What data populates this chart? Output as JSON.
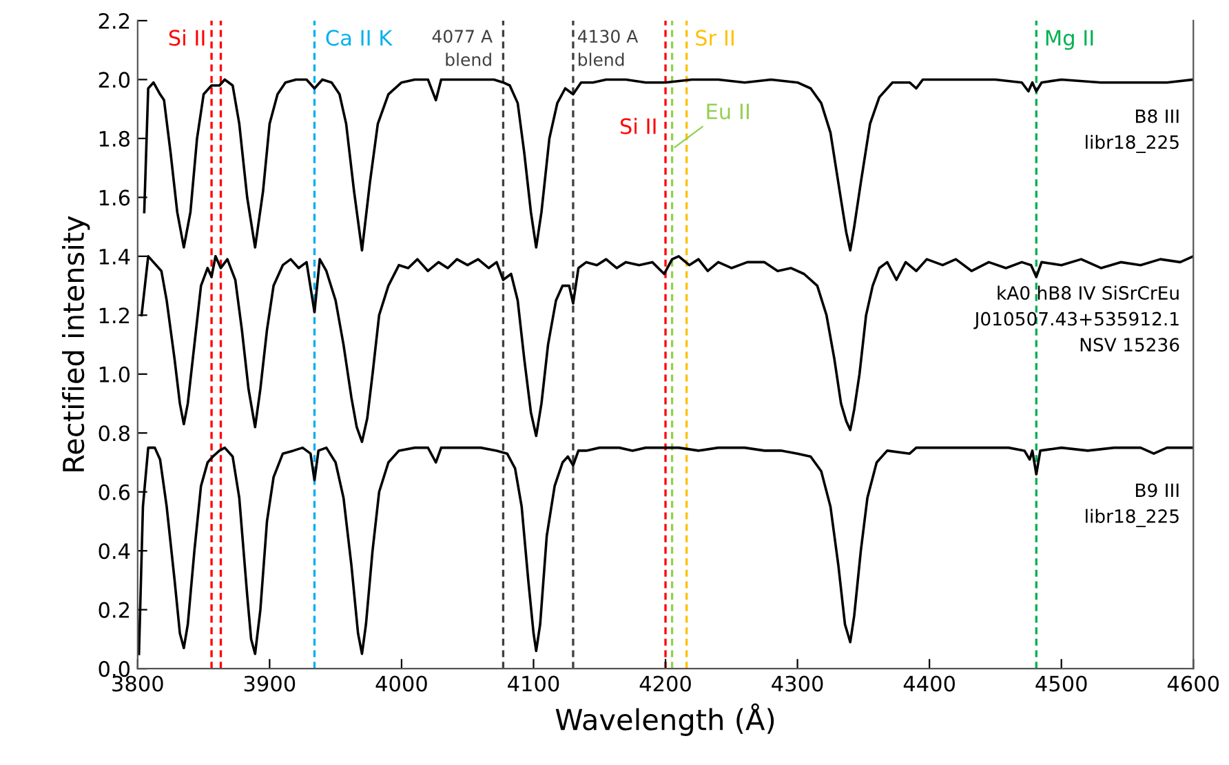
{
  "chart_data": {
    "type": "line",
    "xlabel": "Wavelength (Å)",
    "ylabel": "Rectified intensity",
    "xlim": [
      3800,
      4600
    ],
    "xticks": [
      3800,
      3900,
      4000,
      4100,
      4200,
      4300,
      4400,
      4500,
      4600
    ],
    "ylim": [
      0,
      2.2
    ],
    "yticks": [
      {
        "value": 0,
        "label": "0.0"
      },
      {
        "value": 0.2,
        "label": "0.2"
      },
      {
        "value": 0.4,
        "label": "0.4"
      },
      {
        "value": 0.6,
        "label": "0.6"
      },
      {
        "value": 0.8,
        "label": "0.8"
      },
      {
        "value": 1.0,
        "label": "1.0"
      },
      {
        "value": 1.2,
        "label": "1.2"
      },
      {
        "value": 1.4,
        "label": "1.4"
      },
      {
        "value": 1.6,
        "label": "1.6"
      },
      {
        "value": 1.8,
        "label": "1.8"
      },
      {
        "value": 2.0,
        "label": "2.0"
      },
      {
        "value": 2.2,
        "label": "2.2"
      }
    ],
    "grid": false,
    "legend": false,
    "marker": "none",
    "line_style": "solid",
    "series": [
      {
        "name": "B8 III\nlibr18_225",
        "color": "#000000",
        "x": [
          3805,
          3808,
          3812,
          3817,
          3820,
          3825,
          3830,
          3835,
          3840,
          3845,
          3850,
          3856,
          3862,
          3866,
          3872,
          3877,
          3883,
          3889,
          3895,
          3900,
          3906,
          3912,
          3920,
          3928,
          3934,
          3940,
          3947,
          3953,
          3958,
          3964,
          3970,
          3976,
          3982,
          3990,
          4000,
          4010,
          4020,
          4026,
          4030,
          4040,
          4050,
          4060,
          4070,
          4077,
          4082,
          4088,
          4093,
          4098,
          4102,
          4106,
          4112,
          4118,
          4124,
          4130,
          4136,
          4145,
          4155,
          4170,
          4185,
          4200,
          4220,
          4240,
          4260,
          4280,
          4300,
          4310,
          4318,
          4325,
          4332,
          4337,
          4340,
          4343,
          4348,
          4355,
          4362,
          4372,
          4385,
          4390,
          4395,
          4420,
          4450,
          4470,
          4475,
          4478,
          4481,
          4485,
          4500,
          4530,
          4560,
          4580,
          4600
        ],
        "values": [
          1.55,
          1.97,
          1.99,
          1.95,
          1.93,
          1.75,
          1.55,
          1.43,
          1.55,
          1.8,
          1.95,
          1.98,
          1.98,
          2.0,
          1.98,
          1.85,
          1.6,
          1.43,
          1.62,
          1.85,
          1.95,
          1.99,
          2.0,
          2.0,
          1.97,
          2.0,
          1.99,
          1.95,
          1.85,
          1.62,
          1.42,
          1.65,
          1.85,
          1.95,
          1.99,
          2.0,
          2.0,
          1.93,
          2.0,
          2.0,
          2.0,
          2.0,
          2.0,
          1.99,
          1.98,
          1.92,
          1.75,
          1.55,
          1.43,
          1.55,
          1.8,
          1.92,
          1.97,
          1.95,
          1.99,
          1.99,
          2.0,
          2.0,
          1.99,
          1.99,
          2.0,
          2.0,
          1.99,
          2.0,
          1.99,
          1.97,
          1.92,
          1.82,
          1.62,
          1.48,
          1.42,
          1.5,
          1.65,
          1.85,
          1.94,
          1.99,
          1.99,
          1.97,
          2.0,
          2.0,
          2.0,
          1.99,
          1.96,
          1.99,
          1.96,
          1.99,
          2.0,
          1.99,
          1.99,
          1.99,
          2.0
        ]
      },
      {
        "name": "kA0 hB8 IV SiSrCrEu\nJ010507.43+535912.1\nNSV 15236",
        "color": "#000000",
        "x": [
          3803,
          3808,
          3812,
          3818,
          3822,
          3828,
          3832,
          3835,
          3838,
          3843,
          3848,
          3853,
          3856,
          3859,
          3863,
          3868,
          3874,
          3879,
          3884,
          3889,
          3893,
          3898,
          3903,
          3910,
          3916,
          3922,
          3928,
          3934,
          3938,
          3943,
          3950,
          3956,
          3962,
          3966,
          3970,
          3974,
          3978,
          3983,
          3990,
          3998,
          4005,
          4012,
          4020,
          4028,
          4035,
          4042,
          4050,
          4058,
          4066,
          4072,
          4077,
          4083,
          4088,
          4093,
          4098,
          4102,
          4106,
          4111,
          4117,
          4122,
          4127,
          4130,
          4134,
          4140,
          4148,
          4155,
          4163,
          4170,
          4180,
          4190,
          4199,
          4205,
          4210,
          4218,
          4225,
          4232,
          4240,
          4250,
          4262,
          4275,
          4285,
          4295,
          4305,
          4315,
          4322,
          4328,
          4333,
          4337,
          4340,
          4343,
          4347,
          4352,
          4357,
          4362,
          4368,
          4375,
          4382,
          4390,
          4398,
          4410,
          4420,
          4432,
          4445,
          4458,
          4470,
          4477,
          4481,
          4485,
          4500,
          4515,
          4530,
          4545,
          4560,
          4575,
          4590,
          4600
        ],
        "values": [
          1.2,
          1.4,
          1.38,
          1.35,
          1.25,
          1.05,
          0.9,
          0.83,
          0.9,
          1.1,
          1.3,
          1.36,
          1.33,
          1.4,
          1.36,
          1.39,
          1.32,
          1.15,
          0.95,
          0.82,
          0.95,
          1.15,
          1.3,
          1.37,
          1.39,
          1.36,
          1.38,
          1.21,
          1.39,
          1.35,
          1.25,
          1.1,
          0.92,
          0.82,
          0.77,
          0.85,
          1.0,
          1.2,
          1.3,
          1.37,
          1.36,
          1.39,
          1.35,
          1.38,
          1.36,
          1.39,
          1.37,
          1.39,
          1.36,
          1.38,
          1.32,
          1.34,
          1.25,
          1.05,
          0.87,
          0.79,
          0.9,
          1.1,
          1.25,
          1.3,
          1.3,
          1.24,
          1.36,
          1.38,
          1.37,
          1.39,
          1.36,
          1.38,
          1.37,
          1.38,
          1.34,
          1.39,
          1.4,
          1.37,
          1.39,
          1.35,
          1.38,
          1.36,
          1.38,
          1.38,
          1.35,
          1.36,
          1.34,
          1.3,
          1.2,
          1.05,
          0.9,
          0.84,
          0.81,
          0.88,
          1.0,
          1.2,
          1.3,
          1.36,
          1.38,
          1.32,
          1.38,
          1.35,
          1.39,
          1.37,
          1.39,
          1.35,
          1.38,
          1.36,
          1.38,
          1.37,
          1.33,
          1.38,
          1.37,
          1.39,
          1.36,
          1.38,
          1.37,
          1.39,
          1.38,
          1.4
        ]
      },
      {
        "name": "B9 III\nlibr18_225",
        "color": "#000000",
        "x": [
          3801,
          3804,
          3808,
          3813,
          3817,
          3822,
          3828,
          3832,
          3835,
          3838,
          3843,
          3848,
          3853,
          3857,
          3862,
          3866,
          3872,
          3877,
          3883,
          3886,
          3889,
          3893,
          3898,
          3903,
          3910,
          3918,
          3925,
          3931,
          3934,
          3937,
          3943,
          3950,
          3956,
          3962,
          3967,
          3970,
          3973,
          3978,
          3983,
          3990,
          3998,
          4010,
          4020,
          4026,
          4030,
          4045,
          4060,
          4072,
          4080,
          4086,
          4091,
          4096,
          4100,
          4102,
          4105,
          4110,
          4116,
          4122,
          4126,
          4130,
          4134,
          4140,
          4150,
          4165,
          4175,
          4185,
          4195,
          4210,
          4225,
          4240,
          4260,
          4275,
          4288,
          4300,
          4310,
          4318,
          4325,
          4331,
          4336,
          4340,
          4343,
          4348,
          4353,
          4360,
          4368,
          4385,
          4390,
          4420,
          4440,
          4460,
          4472,
          4476,
          4478,
          4481,
          4484,
          4500,
          4520,
          4540,
          4560,
          4570,
          4580,
          4600
        ],
        "values": [
          0.05,
          0.55,
          0.75,
          0.75,
          0.71,
          0.55,
          0.3,
          0.12,
          0.07,
          0.15,
          0.4,
          0.62,
          0.7,
          0.72,
          0.74,
          0.75,
          0.72,
          0.58,
          0.25,
          0.1,
          0.05,
          0.2,
          0.5,
          0.65,
          0.73,
          0.74,
          0.75,
          0.73,
          0.64,
          0.74,
          0.75,
          0.7,
          0.58,
          0.35,
          0.12,
          0.05,
          0.15,
          0.4,
          0.6,
          0.7,
          0.74,
          0.75,
          0.75,
          0.7,
          0.75,
          0.75,
          0.75,
          0.74,
          0.73,
          0.68,
          0.55,
          0.3,
          0.12,
          0.06,
          0.15,
          0.45,
          0.62,
          0.7,
          0.72,
          0.69,
          0.74,
          0.74,
          0.75,
          0.75,
          0.74,
          0.75,
          0.75,
          0.75,
          0.74,
          0.75,
          0.75,
          0.74,
          0.74,
          0.73,
          0.72,
          0.67,
          0.55,
          0.35,
          0.15,
          0.09,
          0.18,
          0.4,
          0.58,
          0.7,
          0.74,
          0.73,
          0.75,
          0.75,
          0.75,
          0.75,
          0.74,
          0.71,
          0.74,
          0.66,
          0.74,
          0.75,
          0.74,
          0.75,
          0.75,
          0.73,
          0.75,
          0.75
        ]
      }
    ],
    "ref_lines": [
      {
        "axis": "x",
        "value": 3856,
        "label": "Si II",
        "color": "#ff0000",
        "line_style": "dashed"
      },
      {
        "axis": "x",
        "value": 3863,
        "color": "#ff0000",
        "line_style": "dashed"
      },
      {
        "axis": "x",
        "value": 3934,
        "label": "Ca II K",
        "color": "#00b0f0",
        "line_style": "dashed"
      },
      {
        "axis": "x",
        "value": 4077,
        "label": "4077 A\nblend",
        "color": "#404040",
        "line_style": "dashed"
      },
      {
        "axis": "x",
        "value": 4130,
        "label": "4130 A\nblend",
        "color": "#404040",
        "line_style": "dashed"
      },
      {
        "axis": "x",
        "value": 4200,
        "label": "Si II",
        "color": "#ff0000",
        "line_style": "dashed"
      },
      {
        "axis": "x",
        "value": 4205,
        "label": "Eu II",
        "color": "#92d050",
        "line_style": "dashed"
      },
      {
        "axis": "x",
        "value": 4216,
        "label": "Sr II",
        "color": "#ffc000",
        "line_style": "dashed"
      },
      {
        "axis": "x",
        "value": 4481,
        "label": "Mg II",
        "color": "#00b050",
        "line_style": "dashed"
      }
    ]
  }
}
